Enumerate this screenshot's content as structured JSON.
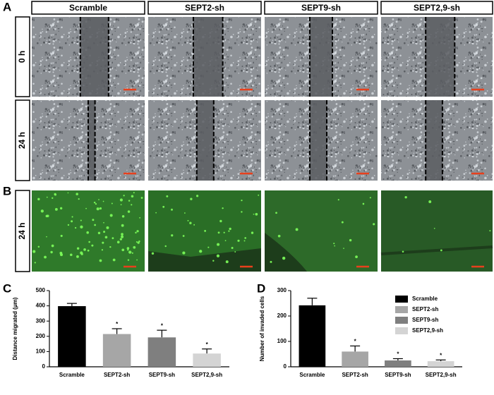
{
  "figure": {
    "panel_labels": [
      "A",
      "B",
      "C",
      "D"
    ],
    "columns": [
      "Scramble",
      "SEPT2-sh",
      "SEPT9-sh",
      "SEPT2,9-sh"
    ],
    "rows_a": [
      "0 h",
      "24 h"
    ],
    "rows_b": [
      "24 h"
    ]
  },
  "chart_data": [
    {
      "type": "bar",
      "y_label": "Distance migrated (μm)",
      "categories": [
        "Scramble",
        "SEPT2-sh",
        "SEPT9-sh",
        "SEPT2,9-sh"
      ],
      "values": [
        398,
        215,
        193,
        87
      ],
      "errors": [
        18,
        35,
        47,
        30
      ],
      "annotations": [
        null,
        "*",
        "*",
        "*"
      ],
      "colors": [
        "#000000",
        "#a6a6a6",
        "#7f7f7f",
        "#d4d4d4"
      ],
      "ylim": [
        0,
        500
      ],
      "yticks": [
        0,
        100,
        200,
        300,
        400,
        500
      ],
      "legend": false
    },
    {
      "type": "bar",
      "y_label": "Number of invaded cells",
      "categories": [
        "Scramble",
        "SEPT2-sh",
        "SEPT9-sh",
        "SEPT2,9-sh"
      ],
      "values": [
        242,
        60,
        25,
        22
      ],
      "errors": [
        28,
        22,
        7,
        5
      ],
      "annotations": [
        null,
        "*",
        "*",
        "*"
      ],
      "colors": [
        "#000000",
        "#a6a6a6",
        "#7f7f7f",
        "#d4d4d4"
      ],
      "ylim": [
        0,
        300
      ],
      "yticks": [
        0,
        100,
        200,
        300
      ],
      "legend": "upper-right"
    }
  ]
}
